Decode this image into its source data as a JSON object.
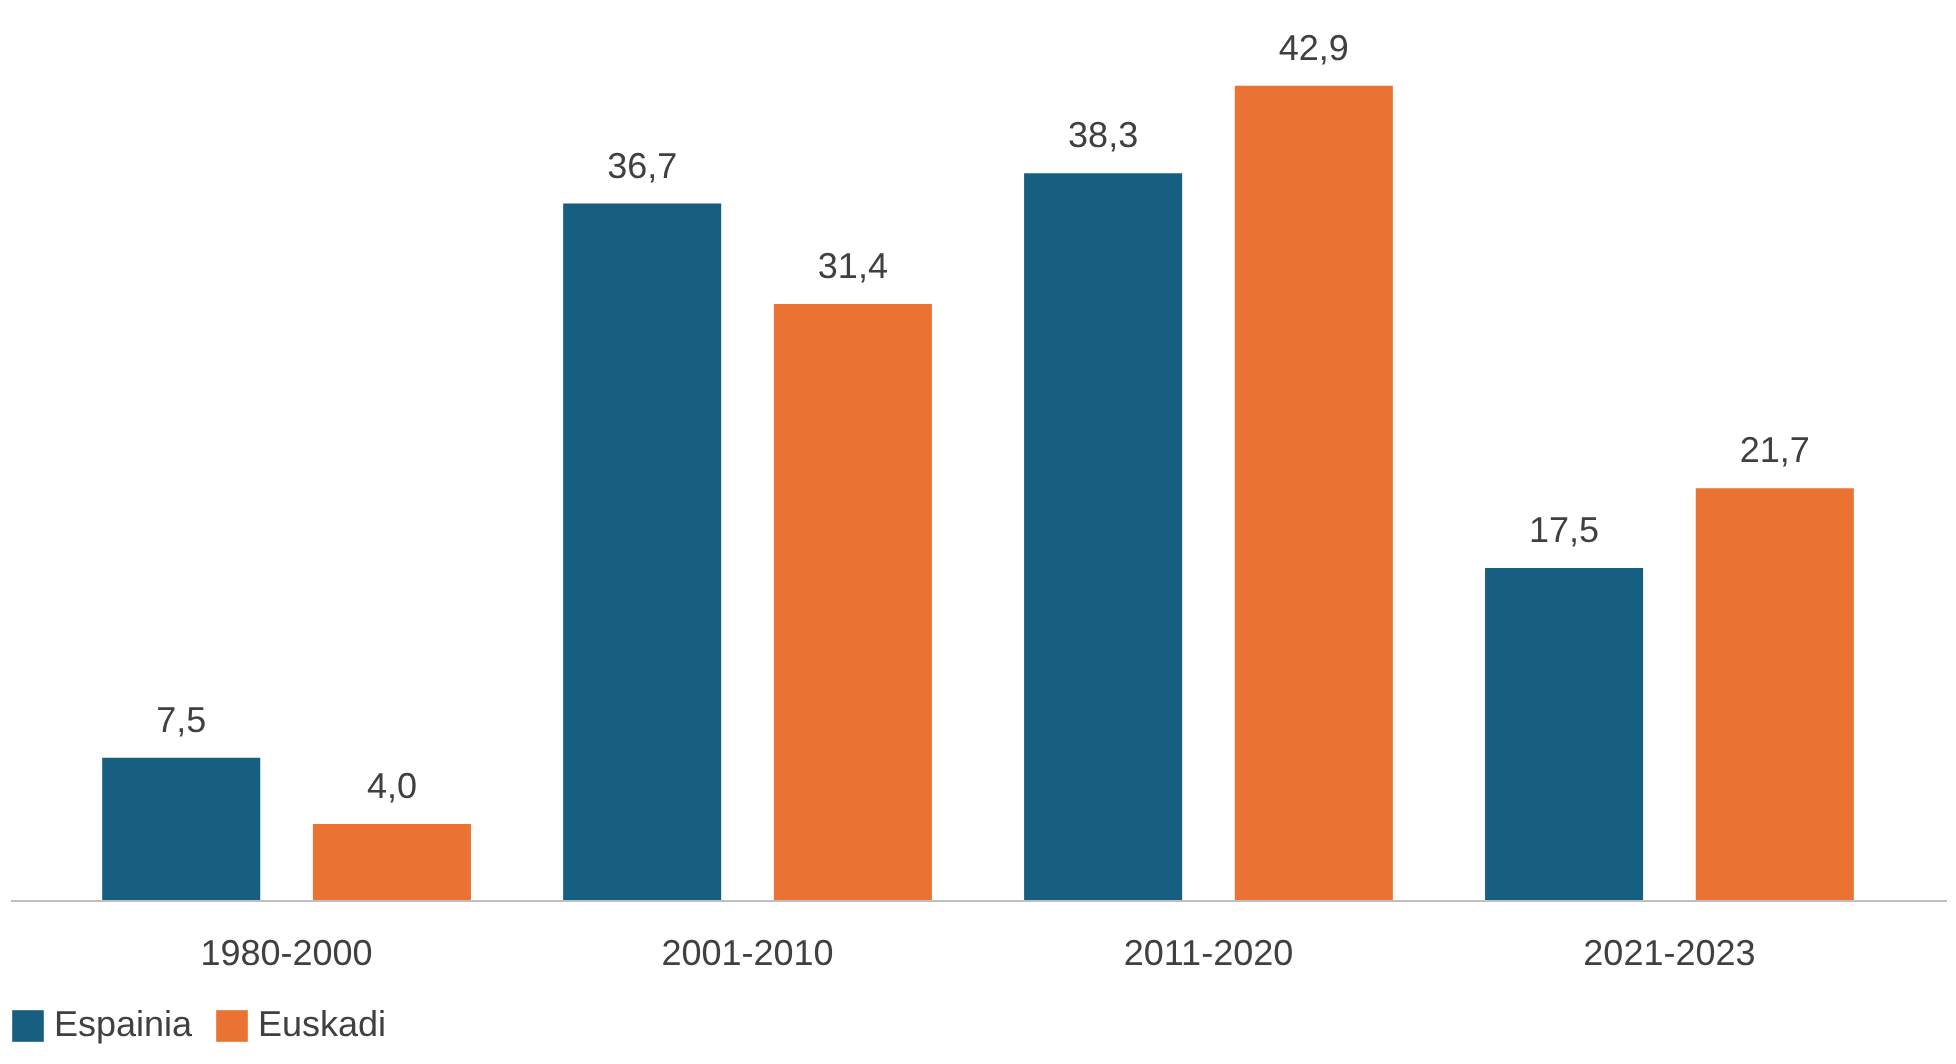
{
  "chart_data": {
    "type": "bar",
    "categories": [
      "1980-2000",
      "2001-2010",
      "2011-2020",
      "2021-2023"
    ],
    "series": [
      {
        "name": "Espainia",
        "color": "#175f80",
        "values": [
          7.5,
          36.7,
          38.3,
          17.5
        ],
        "value_labels": [
          "7,5",
          "36,7",
          "38,3",
          "17,5"
        ]
      },
      {
        "name": "Euskadi",
        "color": "#ea7232",
        "values": [
          4.0,
          31.4,
          42.9,
          21.7
        ],
        "value_labels": [
          "4,0",
          "31,4",
          "42,9",
          "21,7"
        ]
      }
    ],
    "legend": "bottom",
    "grid": false,
    "tick_labels": "x"
  }
}
